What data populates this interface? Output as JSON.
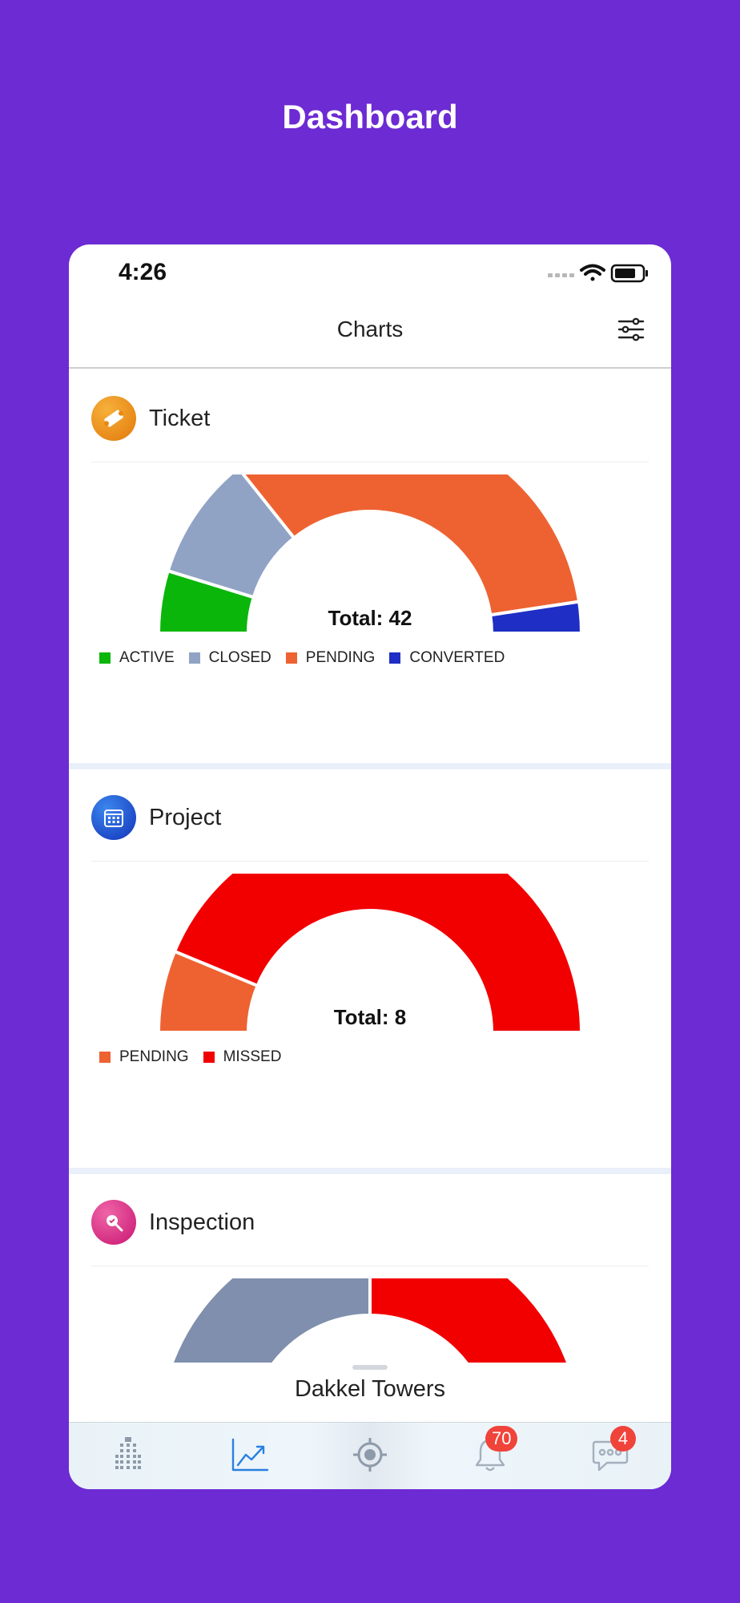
{
  "page": {
    "title": "Dashboard"
  },
  "status_bar": {
    "time": "4:26"
  },
  "nav": {
    "title": "Charts",
    "filter_icon": "sliders-icon"
  },
  "cards": [
    {
      "title": "Ticket",
      "icon": "ticket-icon",
      "icon_color": "#e8890f",
      "total_label": "Total: 42",
      "chart_data": {
        "type": "pie",
        "style": "half-donut",
        "total": 42,
        "series": [
          {
            "name": "ACTIVE",
            "value": 4,
            "color": "#0ab60a"
          },
          {
            "name": "CLOSED",
            "value": 8,
            "color": "#91a3c4"
          },
          {
            "name": "PENDING",
            "value": 28,
            "color": "#ee6232"
          },
          {
            "name": "CONVERTED",
            "value": 2,
            "color": "#1f2ec4"
          }
        ]
      }
    },
    {
      "title": "Project",
      "icon": "calendar-icon",
      "icon_color": "#1a56d6",
      "total_label": "Total: 8",
      "chart_data": {
        "type": "pie",
        "style": "half-donut",
        "total": 8,
        "series": [
          {
            "name": "PENDING",
            "value": 1,
            "color": "#ee6232"
          },
          {
            "name": "MISSED",
            "value": 7,
            "color": "#f20000"
          }
        ]
      }
    },
    {
      "title": "Inspection",
      "icon": "inspection-icon",
      "icon_color": "#d6267f",
      "chart_data": {
        "type": "pie",
        "style": "half-donut",
        "series": [
          {
            "value": 1,
            "color": "#7f8fad"
          },
          {
            "value": 1,
            "color": "#f20000"
          }
        ]
      }
    }
  ],
  "sheet": {
    "title": "Dakkel Towers"
  },
  "tabs": [
    {
      "icon": "building-icon"
    },
    {
      "icon": "chart-line-icon",
      "active": true
    },
    {
      "icon": "target-icon"
    },
    {
      "icon": "bell-icon",
      "badge": "70"
    },
    {
      "icon": "chat-bubble-icon",
      "badge": "4"
    }
  ]
}
